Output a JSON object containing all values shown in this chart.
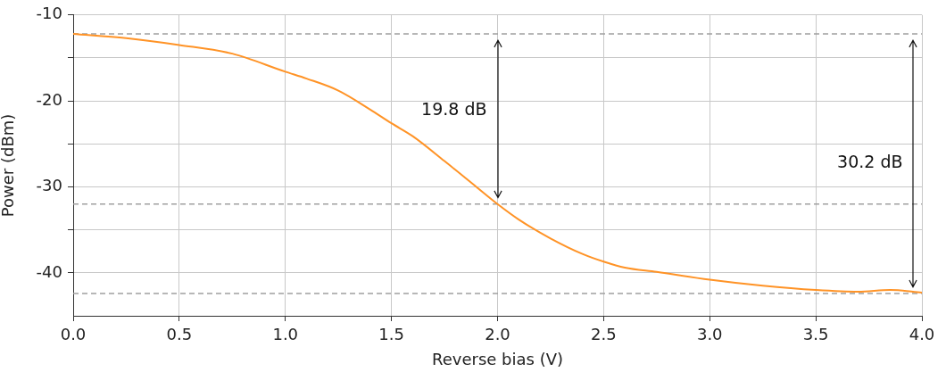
{
  "chart_data": {
    "type": "line",
    "xlabel": "Reverse bias (V)",
    "ylabel": "Power (dBm)",
    "x": [
      0,
      0.25,
      0.5,
      0.75,
      1.0,
      1.1,
      1.25,
      1.4,
      1.5,
      1.6,
      1.75,
      1.9,
      2.0,
      2.1,
      2.25,
      2.4,
      2.5,
      2.6,
      2.75,
      3.0,
      3.25,
      3.5,
      3.7,
      3.85,
      4.0
    ],
    "series": [
      {
        "color": "#ff9326",
        "values": [
          -12.2,
          -12.7,
          -13.5,
          -14.5,
          -16.6,
          -17.4,
          -18.8,
          -21.0,
          -22.6,
          -24.1,
          -27.0,
          -30.0,
          -32.0,
          -33.8,
          -36.0,
          -37.8,
          -38.7,
          -39.4,
          -39.9,
          -40.8,
          -41.5,
          -42.0,
          -42.2,
          -42.0,
          -42.3
        ]
      }
    ],
    "xlim": [
      0,
      4
    ],
    "xticks": [
      {
        "value": 0,
        "label": "0.0"
      },
      {
        "value": 0.5,
        "label": "0.5"
      },
      {
        "value": 1,
        "label": "1.0"
      },
      {
        "value": 1.5,
        "label": "1.5"
      },
      {
        "value": 2,
        "label": "2.0"
      },
      {
        "value": 2.5,
        "label": "2.5"
      },
      {
        "value": 3,
        "label": "3.0"
      },
      {
        "value": 3.5,
        "label": "3.5"
      },
      {
        "value": 4,
        "label": "4.0"
      }
    ],
    "ylim": [
      -45,
      -10
    ],
    "yticks": [
      -10,
      {
        "value": -15,
        "label": null
      },
      -20,
      {
        "value": -25,
        "label": null
      },
      -30,
      {
        "value": -35,
        "label": null
      },
      -40
    ],
    "ref_lines": [
      {
        "axis": "y",
        "value": -12.2,
        "color": "#a0a0a0",
        "line_style": "dashed"
      },
      {
        "axis": "y",
        "value": -32.0,
        "color": "#a0a0a0",
        "line_style": "dashed"
      },
      {
        "axis": "y",
        "value": -42.4,
        "color": "#a0a0a0",
        "line_style": "dashed"
      }
    ],
    "annotations": [
      "19.8 dB",
      "30.2 dB"
    ],
    "grid": true,
    "marker": "none",
    "line_style": "solid",
    "legend": false
  }
}
